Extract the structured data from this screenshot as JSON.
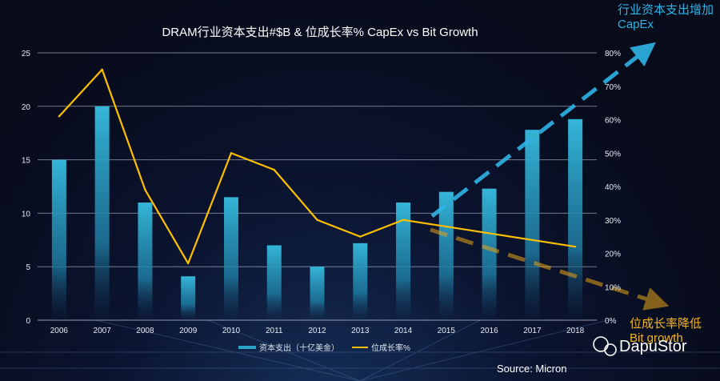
{
  "chart_data": {
    "type": "bar",
    "title": "DRAM行业资本支出#$B & 位成长率% CapEx vs Bit Growth",
    "categories": [
      "2006",
      "2007",
      "2008",
      "2009",
      "2010",
      "2011",
      "2012",
      "2013",
      "2014",
      "2015",
      "2016",
      "2017",
      "2018"
    ],
    "series": [
      {
        "name": "资本支出（十亿美金）",
        "type": "bar",
        "axis": "left",
        "values": [
          15,
          20,
          11,
          4.1,
          11.5,
          7,
          5,
          7.2,
          11,
          12,
          12.3,
          17.8,
          18.8
        ]
      },
      {
        "name": "位成长率%",
        "type": "line",
        "axis": "right",
        "values": [
          61,
          75,
          39,
          17,
          50,
          45,
          30,
          25,
          30,
          28,
          26,
          24,
          22
        ]
      }
    ],
    "y_left": {
      "min": 0,
      "max": 25,
      "ticks": [
        "0",
        "5",
        "10",
        "15",
        "20",
        "25"
      ]
    },
    "y_right": {
      "min": 0,
      "max": 80,
      "ticks": [
        "0%",
        "10%",
        "20%",
        "30%",
        "40%",
        "50%",
        "60%",
        "70%",
        "80%"
      ]
    },
    "grid": true,
    "legend_position": "bottom",
    "annotations": {
      "capex_trend": {
        "line1": "行业资本支出增加",
        "line2": "CapEx"
      },
      "bit_trend": {
        "line1": "位成长率降低",
        "line2": "Bit growth"
      }
    },
    "colors": {
      "bar": "#2aa3c6",
      "line": "#ffc000",
      "capex_arrow": "#2fb4e6",
      "bit_arrow": "#e8a317"
    },
    "source": "Source: Micron",
    "watermark": "DapuStor"
  }
}
